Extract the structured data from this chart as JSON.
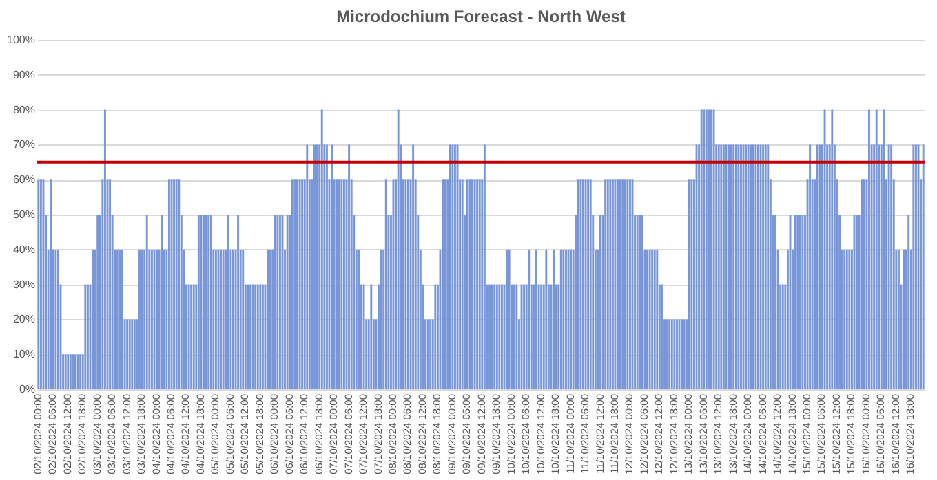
{
  "chart_data": {
    "type": "bar",
    "title": "Microdochium Forecast - North West",
    "categories": [
      "02/10/2024 00:00",
      null,
      null,
      null,
      null,
      null,
      "02/10/2024 06:00",
      null,
      null,
      null,
      null,
      null,
      "02/10/2024 12:00",
      null,
      null,
      null,
      null,
      null,
      "02/10/2024 18:00",
      null,
      null,
      null,
      null,
      null,
      "03/10/2024 00:00",
      null,
      null,
      null,
      null,
      null,
      "03/10/2024 06:00",
      null,
      null,
      null,
      null,
      null,
      "03/10/2024 12:00",
      null,
      null,
      null,
      null,
      null,
      "03/10/2024 18:00",
      null,
      null,
      null,
      null,
      null,
      "04/10/2024 00:00",
      null,
      null,
      null,
      null,
      null,
      "04/10/2024 06:00",
      null,
      null,
      null,
      null,
      null,
      "04/10/2024 12:00",
      null,
      null,
      null,
      null,
      null,
      "04/10/2024 18:00",
      null,
      null,
      null,
      null,
      null,
      "05/10/2024 00:00",
      null,
      null,
      null,
      null,
      null,
      "05/10/2024 06:00",
      null,
      null,
      null,
      null,
      null,
      "05/10/2024 12:00",
      null,
      null,
      null,
      null,
      null,
      "05/10/2024 18:00",
      null,
      null,
      null,
      null,
      null,
      "06/10/2024 00:00",
      null,
      null,
      null,
      null,
      null,
      "06/10/2024 06:00",
      null,
      null,
      null,
      null,
      null,
      "06/10/2024 12:00",
      null,
      null,
      null,
      null,
      null,
      "06/10/2024 18:00",
      null,
      null,
      null,
      null,
      null,
      "07/10/2024 00:00",
      null,
      null,
      null,
      null,
      null,
      "07/10/2024 06:00",
      null,
      null,
      null,
      null,
      null,
      "07/10/2024 12:00",
      null,
      null,
      null,
      null,
      null,
      "07/10/2024 18:00",
      null,
      null,
      null,
      null,
      null,
      "08/10/2024 00:00",
      null,
      null,
      null,
      null,
      null,
      "08/10/2024 06:00",
      null,
      null,
      null,
      null,
      null,
      "08/10/2024 12:00",
      null,
      null,
      null,
      null,
      null,
      "08/10/2024 18:00",
      null,
      null,
      null,
      null,
      null,
      "09/10/2024 00:00",
      null,
      null,
      null,
      null,
      null,
      "09/10/2024 06:00",
      null,
      null,
      null,
      null,
      null,
      "09/10/2024 12:00",
      null,
      null,
      null,
      null,
      null,
      "09/10/2024 18:00",
      null,
      null,
      null,
      null,
      null,
      "10/10/2024 00:00",
      null,
      null,
      null,
      null,
      null,
      "10/10/2024 06:00",
      null,
      null,
      null,
      null,
      null,
      "10/10/2024 12:00",
      null,
      null,
      null,
      null,
      null,
      "10/10/2024 18:00",
      null,
      null,
      null,
      null,
      null,
      "11/10/2024 00:00",
      null,
      null,
      null,
      null,
      null,
      "11/10/2024 06:00",
      null,
      null,
      null,
      null,
      null,
      "11/10/2024 12:00",
      null,
      null,
      null,
      null,
      null,
      "11/10/2024 18:00",
      null,
      null,
      null,
      null,
      null,
      "12/10/2024 00:00",
      null,
      null,
      null,
      null,
      null,
      "12/10/2024 06:00",
      null,
      null,
      null,
      null,
      null,
      "12/10/2024 12:00",
      null,
      null,
      null,
      null,
      null,
      "12/10/2024 18:00",
      null,
      null,
      null,
      null,
      null,
      "13/10/2024 00:00",
      null,
      null,
      null,
      null,
      null,
      "13/10/2024 06:00",
      null,
      null,
      null,
      null,
      null,
      "13/10/2024 12:00",
      null,
      null,
      null,
      null,
      null,
      "13/10/2024 18:00",
      null,
      null,
      null,
      null,
      null,
      "14/10/2024 00:00",
      null,
      null,
      null,
      null,
      null,
      "14/10/2024 06:00",
      null,
      null,
      null,
      null,
      null,
      "14/10/2024 12:00",
      null,
      null,
      null,
      null,
      null,
      "14/10/2024 18:00",
      null,
      null,
      null,
      null,
      null,
      "15/10/2024 00:00",
      null,
      null,
      null,
      null,
      null,
      "15/10/2024 06:00",
      null,
      null,
      null,
      null,
      null,
      "15/10/2024 12:00",
      null,
      null,
      null,
      null,
      null,
      "15/10/2024 18:00",
      null,
      null,
      null,
      null,
      null,
      "16/10/2024 00:00",
      null,
      null,
      null,
      null,
      null,
      "16/10/2024 06:00",
      null,
      null,
      null,
      null,
      null,
      "16/10/2024 12:00",
      null,
      null,
      null,
      null,
      null,
      "16/10/2024 18:00",
      null,
      null,
      null,
      null,
      null
    ],
    "values": [
      60,
      60,
      60,
      50,
      40,
      60,
      40,
      40,
      40,
      30,
      10,
      10,
      10,
      10,
      10,
      10,
      10,
      10,
      10,
      30,
      30,
      30,
      40,
      40,
      50,
      50,
      60,
      80,
      60,
      60,
      50,
      40,
      40,
      40,
      40,
      20,
      20,
      20,
      20,
      20,
      20,
      40,
      40,
      40,
      50,
      40,
      40,
      40,
      40,
      40,
      50,
      40,
      40,
      60,
      60,
      60,
      60,
      60,
      50,
      40,
      30,
      30,
      30,
      30,
      30,
      50,
      50,
      50,
      50,
      50,
      50,
      40,
      40,
      40,
      40,
      40,
      40,
      50,
      40,
      40,
      40,
      50,
      40,
      40,
      30,
      30,
      30,
      30,
      30,
      30,
      30,
      30,
      30,
      40,
      40,
      40,
      50,
      50,
      50,
      50,
      40,
      50,
      50,
      60,
      60,
      60,
      60,
      60,
      60,
      70,
      60,
      60,
      70,
      70,
      70,
      80,
      70,
      70,
      60,
      70,
      60,
      60,
      60,
      60,
      60,
      60,
      70,
      60,
      50,
      40,
      40,
      30,
      30,
      20,
      20,
      30,
      20,
      20,
      30,
      40,
      40,
      60,
      50,
      50,
      60,
      60,
      80,
      70,
      60,
      60,
      60,
      60,
      70,
      60,
      50,
      40,
      30,
      20,
      20,
      20,
      20,
      30,
      30,
      40,
      60,
      60,
      60,
      70,
      70,
      70,
      70,
      60,
      60,
      50,
      60,
      60,
      60,
      60,
      60,
      60,
      60,
      70,
      30,
      30,
      30,
      30,
      30,
      30,
      30,
      30,
      40,
      40,
      30,
      30,
      30,
      20,
      30,
      30,
      30,
      40,
      30,
      30,
      40,
      30,
      30,
      30,
      40,
      30,
      30,
      40,
      30,
      30,
      40,
      40,
      40,
      40,
      40,
      40,
      50,
      60,
      60,
      60,
      60,
      60,
      60,
      50,
      40,
      40,
      50,
      50,
      60,
      60,
      60,
      60,
      60,
      60,
      60,
      60,
      60,
      60,
      60,
      60,
      50,
      50,
      50,
      50,
      40,
      40,
      40,
      40,
      40,
      40,
      30,
      30,
      20,
      20,
      20,
      20,
      20,
      20,
      20,
      20,
      20,
      20,
      60,
      60,
      60,
      70,
      70,
      80,
      80,
      80,
      80,
      80,
      80,
      70,
      70,
      70,
      70,
      70,
      70,
      70,
      70,
      70,
      70,
      70,
      70,
      70,
      70,
      70,
      70,
      70,
      70,
      70,
      70,
      70,
      70,
      60,
      50,
      50,
      40,
      30,
      30,
      30,
      40,
      50,
      40,
      50,
      50,
      50,
      50,
      50,
      60,
      70,
      60,
      60,
      70,
      70,
      70,
      80,
      70,
      70,
      80,
      70,
      60,
      50,
      40,
      40,
      40,
      40,
      40,
      50,
      50,
      50,
      60,
      60,
      60,
      80,
      70,
      70,
      80,
      70,
      70,
      80,
      60,
      70,
      70,
      60,
      40,
      40,
      30,
      40,
      40,
      50,
      40,
      70,
      70,
      70,
      60,
      70
    ],
    "color": "#7896d8",
    "ylim": [
      0,
      100
    ],
    "yticks": [
      {
        "value": 0,
        "label": "0%"
      },
      {
        "value": 10,
        "label": "10%"
      },
      {
        "value": 20,
        "label": "20%"
      },
      {
        "value": 30,
        "label": "30%"
      },
      {
        "value": 40,
        "label": "40%"
      },
      {
        "value": 50,
        "label": "50%"
      },
      {
        "value": 60,
        "label": "60%"
      },
      {
        "value": 70,
        "label": "70%"
      },
      {
        "value": 80,
        "label": "80%"
      },
      {
        "value": 90,
        "label": "90%"
      },
      {
        "value": 100,
        "label": "100%"
      }
    ],
    "grid": "y",
    "ref_lines": [
      {
        "axis": "y",
        "value": 65,
        "color": "#c00000"
      }
    ]
  }
}
